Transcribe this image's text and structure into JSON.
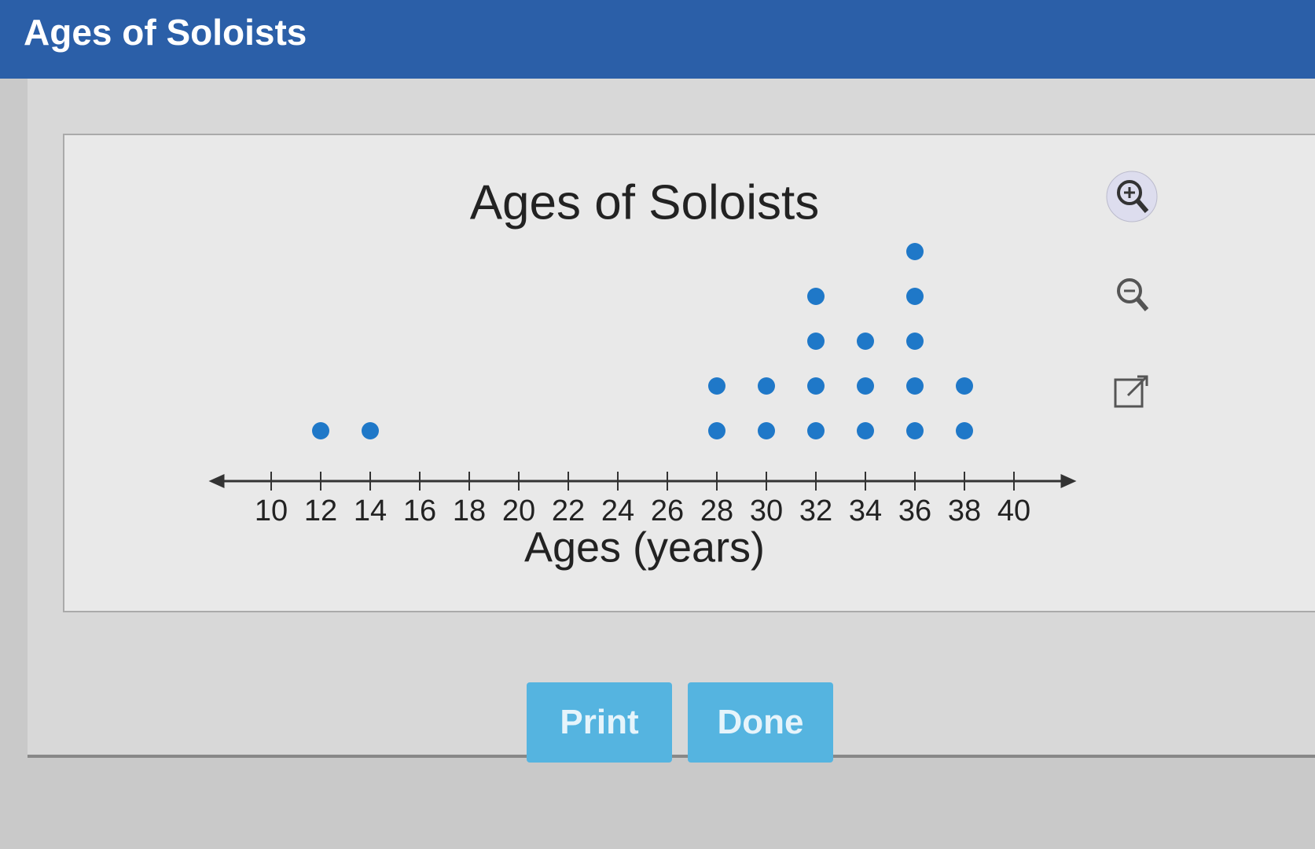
{
  "window": {
    "title": "Ages of Soloists"
  },
  "chart_data": {
    "type": "dot",
    "title": "Ages of Soloists",
    "x_label": "Ages (years)",
    "x": [
      12,
      14,
      28,
      30,
      32,
      34,
      36,
      38
    ],
    "values": [
      1,
      1,
      2,
      2,
      4,
      3,
      5,
      2
    ],
    "color": "#1f78c8",
    "xlim": [
      9,
      41
    ],
    "xticks": [
      10,
      12,
      14,
      16,
      18,
      20,
      22,
      24,
      26,
      28,
      30,
      32,
      34,
      36,
      38,
      40
    ]
  },
  "buttons": [
    "Print",
    "Done"
  ]
}
